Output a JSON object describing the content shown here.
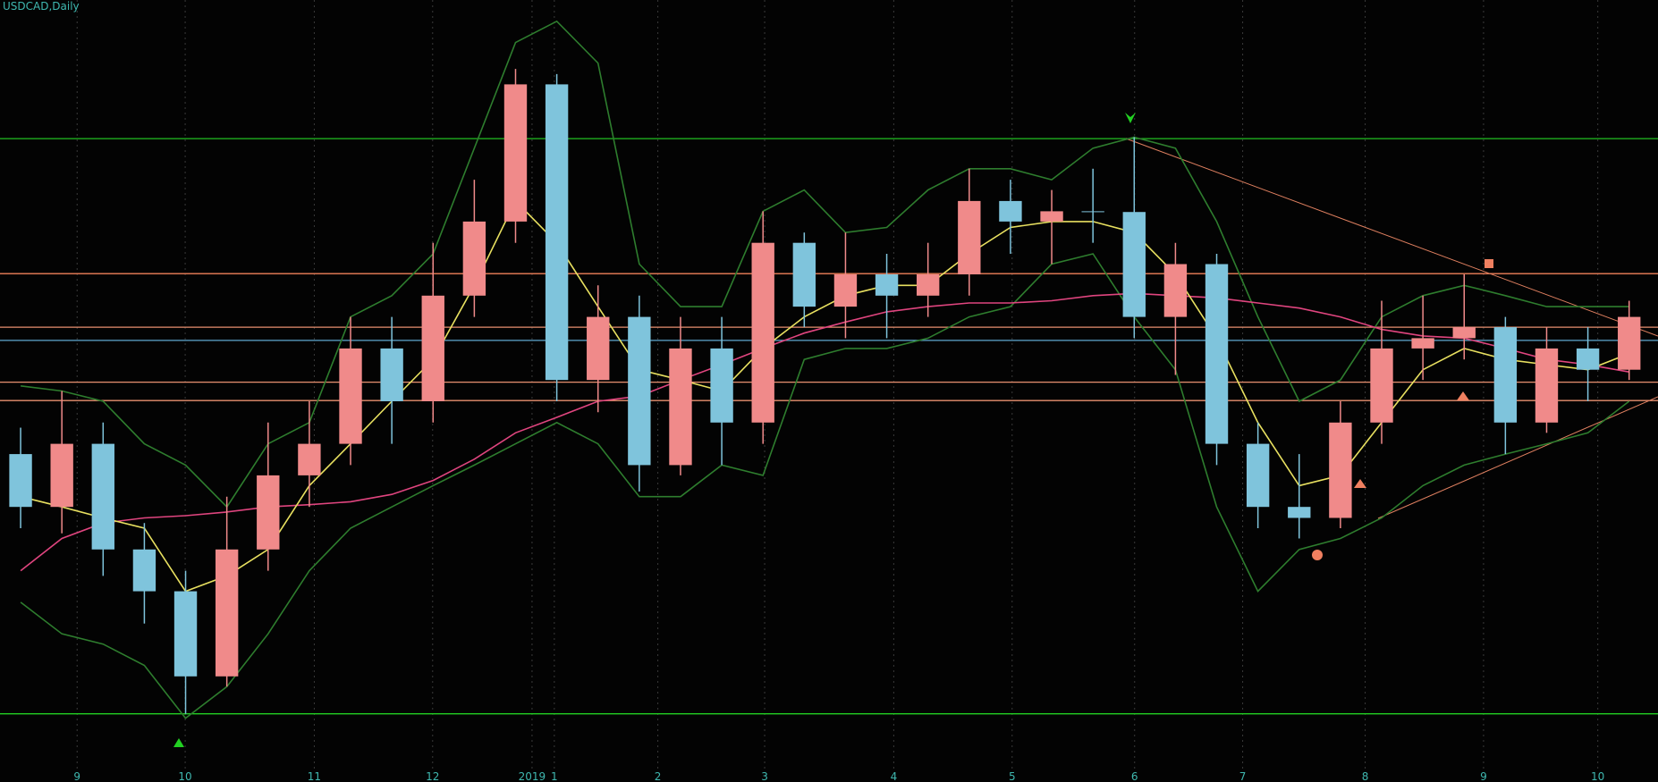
{
  "chart_data": {
    "type": "candlestick",
    "title": "USDCAD,Daily",
    "up_color": "#f08a8a",
    "down_color": "#7fc4dc",
    "xlim": [
      0,
      40.2
    ],
    "ylim": [
      1.2693,
      1.3759
    ],
    "xticks": [
      {
        "value": 1.87,
        "label": "9"
      },
      {
        "value": 4.49,
        "label": "10"
      },
      {
        "value": 7.62,
        "label": "11"
      },
      {
        "value": 10.49,
        "label": "12"
      },
      {
        "value": 12.9,
        "label": "2019"
      },
      {
        "value": 13.44,
        "label": "1"
      },
      {
        "value": 15.95,
        "label": "2"
      },
      {
        "value": 18.54,
        "label": "3"
      },
      {
        "value": 21.67,
        "label": "4"
      },
      {
        "value": 24.54,
        "label": "5"
      },
      {
        "value": 27.51,
        "label": "6"
      },
      {
        "value": 30.13,
        "label": "7"
      },
      {
        "value": 33.1,
        "label": "8"
      },
      {
        "value": 35.97,
        "label": "9"
      },
      {
        "value": 38.74,
        "label": "10"
      }
    ],
    "open": [
      1.314,
      1.3068,
      1.3154,
      1.301,
      1.2953,
      1.2837,
      1.301,
      1.3111,
      1.3154,
      1.3284,
      1.3212,
      1.3356,
      1.3457,
      1.3644,
      1.3241,
      1.3327,
      1.3125,
      1.3284,
      1.3183,
      1.3428,
      1.3341,
      1.3385,
      1.3356,
      1.3385,
      1.3485,
      1.3457,
      1.3471,
      1.347,
      1.3327,
      1.3399,
      1.3154,
      1.3068,
      1.3053,
      1.3183,
      1.3284,
      1.3298,
      1.3313,
      1.3183,
      1.3284,
      1.3255
    ],
    "high": [
      1.3176,
      1.3226,
      1.3183,
      1.3046,
      1.2981,
      1.3082,
      1.3183,
      1.3212,
      1.3327,
      1.3327,
      1.3428,
      1.3514,
      1.3665,
      1.3658,
      1.337,
      1.3356,
      1.3327,
      1.3327,
      1.3471,
      1.3442,
      1.3442,
      1.3413,
      1.3428,
      1.3529,
      1.3514,
      1.35,
      1.3529,
      1.3572,
      1.3428,
      1.3413,
      1.3183,
      1.314,
      1.3212,
      1.3349,
      1.3356,
      1.3385,
      1.3327,
      1.3313,
      1.3313,
      1.3349
    ],
    "low": [
      1.3039,
      1.3032,
      1.2974,
      1.2909,
      1.2786,
      1.2823,
      1.2981,
      1.3068,
      1.3125,
      1.3154,
      1.3183,
      1.3327,
      1.3428,
      1.3212,
      1.3197,
      1.3089,
      1.3111,
      1.3125,
      1.3154,
      1.3313,
      1.3298,
      1.3298,
      1.3327,
      1.3356,
      1.3413,
      1.3399,
      1.3428,
      1.3298,
      1.3248,
      1.3125,
      1.3039,
      1.3025,
      1.3039,
      1.3154,
      1.3241,
      1.3269,
      1.314,
      1.3169,
      1.3212,
      1.3241
    ],
    "close": [
      1.3068,
      1.3154,
      1.301,
      1.2953,
      1.2837,
      1.301,
      1.3111,
      1.3154,
      1.3284,
      1.3212,
      1.3356,
      1.3457,
      1.3644,
      1.3241,
      1.3327,
      1.3125,
      1.3284,
      1.3183,
      1.3428,
      1.3341,
      1.3385,
      1.3356,
      1.3385,
      1.3485,
      1.3457,
      1.3471,
      1.347,
      1.3327,
      1.3399,
      1.3154,
      1.3068,
      1.3053,
      1.3183,
      1.3284,
      1.3298,
      1.3313,
      1.3183,
      1.3284,
      1.3255,
      1.3327
    ],
    "lines": [
      {
        "color": "#2e7d2e",
        "values": [
          1.3233,
          1.3226,
          1.3212,
          1.3154,
          1.3125,
          1.3068,
          1.3154,
          1.3183,
          1.3327,
          1.3356,
          1.3413,
          1.3557,
          1.3701,
          1.373,
          1.3673,
          1.3399,
          1.3341,
          1.3341,
          1.3471,
          1.35,
          1.3442,
          1.3449,
          1.35,
          1.3529,
          1.3529,
          1.3514,
          1.3557,
          1.3572,
          1.3557,
          1.3457,
          1.3327,
          1.3212,
          1.3241,
          1.3327,
          1.3356,
          1.337,
          1.3356,
          1.3341,
          1.3341,
          1.3341
        ]
      },
      {
        "color": "#2e7d2e",
        "values": [
          1.2938,
          1.2895,
          1.2881,
          1.2852,
          1.278,
          1.2823,
          1.2895,
          1.2981,
          1.3039,
          1.3068,
          1.3097,
          1.3125,
          1.3154,
          1.3183,
          1.3154,
          1.3082,
          1.3082,
          1.3125,
          1.3111,
          1.3269,
          1.3284,
          1.3284,
          1.3298,
          1.3327,
          1.3341,
          1.3399,
          1.3413,
          1.3327,
          1.3255,
          1.3068,
          1.2953,
          1.301,
          1.3025,
          1.3053,
          1.3097,
          1.3125,
          1.314,
          1.3154,
          1.3169,
          1.3212
        ]
      },
      {
        "color": "#e0457f",
        "values": [
          1.2981,
          1.3025,
          1.3046,
          1.3053,
          1.3056,
          1.3061,
          1.3068,
          1.3071,
          1.3075,
          1.3085,
          1.3104,
          1.3133,
          1.3169,
          1.319,
          1.3212,
          1.3219,
          1.3241,
          1.3262,
          1.3284,
          1.3305,
          1.332,
          1.3334,
          1.3341,
          1.3346,
          1.3346,
          1.3349,
          1.3356,
          1.3359,
          1.3356,
          1.3353,
          1.3346,
          1.3339,
          1.3327,
          1.331,
          1.3301,
          1.3298,
          1.3284,
          1.3269,
          1.3262,
          1.3252
        ]
      },
      {
        "color": "#e8e060",
        "values": [
          1.3082,
          1.3068,
          1.3053,
          1.3039,
          1.2953,
          1.2974,
          1.301,
          1.3097,
          1.3154,
          1.3212,
          1.3269,
          1.337,
          1.3485,
          1.3428,
          1.3341,
          1.3255,
          1.3241,
          1.3226,
          1.3284,
          1.3327,
          1.3356,
          1.337,
          1.337,
          1.3413,
          1.3449,
          1.3457,
          1.3457,
          1.3442,
          1.3385,
          1.3298,
          1.3183,
          1.3097,
          1.3111,
          1.3183,
          1.3255,
          1.3284,
          1.3269,
          1.3262,
          1.3255,
          1.3277
        ]
      }
    ],
    "levels": [
      {
        "value": 1.2786,
        "color": "#22d022"
      },
      {
        "value": 1.357,
        "color": "#22c022"
      },
      {
        "value": 1.3386,
        "color": "#f0805a"
      },
      {
        "value": 1.3313,
        "color": "#e89070"
      },
      {
        "value": 1.3295,
        "color": "#5fa8d0"
      },
      {
        "value": 1.3238,
        "color": "#e89070"
      },
      {
        "value": 1.3213,
        "color": "#e89070"
      }
    ]
  }
}
